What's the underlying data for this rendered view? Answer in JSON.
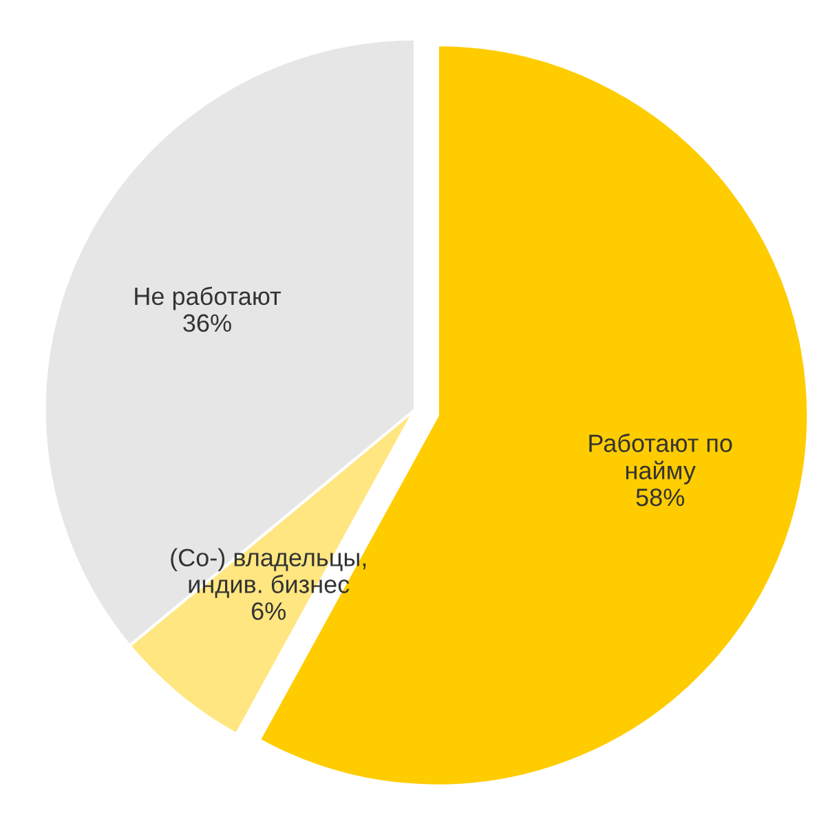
{
  "chart_data": {
    "type": "pie",
    "categories": [
      "Работают по\nнайму",
      "(Co-) владельцы,\nиндив. бизнес",
      "Не работают"
    ],
    "values": [
      58,
      6,
      36
    ],
    "value_labels": [
      "58%",
      "6%",
      "36%"
    ],
    "colors": [
      "#ffcc00",
      "#ffe680",
      "#e6e6e6"
    ],
    "legend": false
  }
}
